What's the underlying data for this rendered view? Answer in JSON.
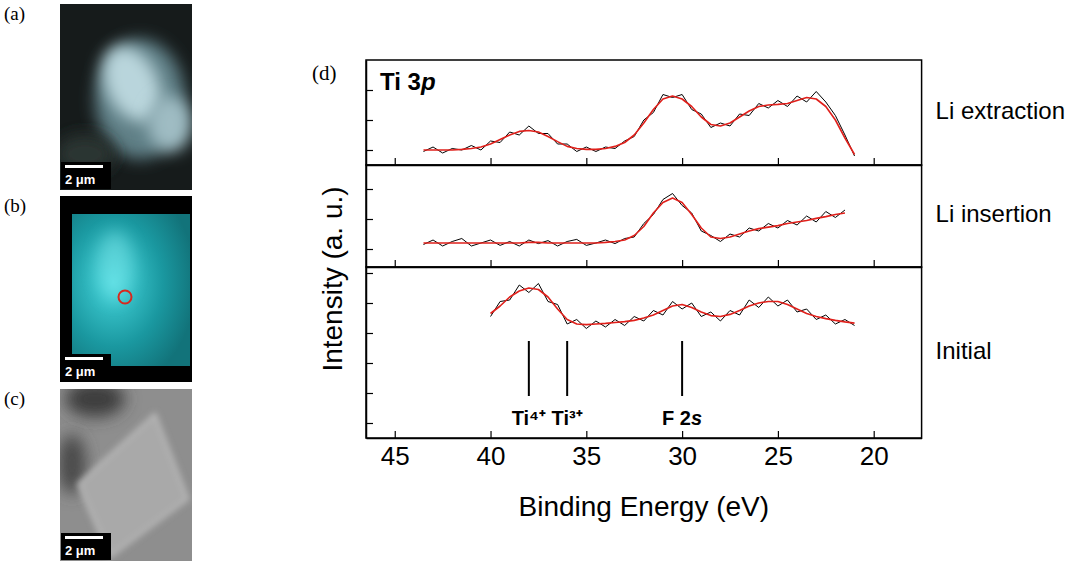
{
  "figure": {
    "panel_letter": "(d)",
    "title": "Ti 3p",
    "y_label": "Intensity (a. u.)",
    "x_label": "Binding Energy (eV)"
  },
  "images": [
    {
      "letter": "(a)",
      "scale_bar": "2 μm"
    },
    {
      "letter": "(b)",
      "scale_bar": "2 μm"
    },
    {
      "letter": "(c)",
      "scale_bar": "2 μm"
    }
  ],
  "chart_data": [
    {
      "type": "line",
      "label": "Li extraction",
      "x": [
        43.5,
        43,
        42.5,
        42,
        41.5,
        41,
        40.5,
        40,
        39.5,
        39,
        38.5,
        38,
        37.5,
        37,
        36.5,
        36,
        35.5,
        35,
        34.5,
        34,
        33.5,
        33,
        32.5,
        32,
        31.5,
        31,
        30.5,
        30,
        29.5,
        29,
        28.5,
        28,
        27.5,
        27,
        26.5,
        26,
        25.5,
        25,
        24.5,
        24,
        23.5,
        23,
        22.5,
        22,
        21.5,
        21
      ],
      "xlim": [
        46.5,
        17.5
      ],
      "xticks": [
        45,
        40,
        35,
        30,
        25,
        20
      ],
      "ylim": [
        0,
        3.5
      ],
      "yticks": [
        0.5,
        1.5,
        2.5
      ],
      "tick_labels": false,
      "series": [
        {
          "color": "#000000",
          "values": [
            0.45,
            0.6,
            0.4,
            0.55,
            0.5,
            0.65,
            0.5,
            0.8,
            0.75,
            1.1,
            1.0,
            1.3,
            1.05,
            1.05,
            0.7,
            0.7,
            0.45,
            0.6,
            0.45,
            0.6,
            0.55,
            0.8,
            0.95,
            1.5,
            1.75,
            2.35,
            2.25,
            2.35,
            1.85,
            1.7,
            1.25,
            1.4,
            1.3,
            1.7,
            1.65,
            2.05,
            1.9,
            2.15,
            1.95,
            2.3,
            2.1,
            2.45,
            2.1,
            1.65,
            1.0,
            0.3
          ]
        },
        {
          "color": "#e0201b",
          "values": [
            0.5,
            0.5,
            0.5,
            0.5,
            0.52,
            0.55,
            0.6,
            0.7,
            0.85,
            1.0,
            1.12,
            1.15,
            1.1,
            0.95,
            0.78,
            0.62,
            0.55,
            0.52,
            0.52,
            0.55,
            0.62,
            0.75,
            1.0,
            1.4,
            1.85,
            2.2,
            2.3,
            2.2,
            1.95,
            1.6,
            1.35,
            1.3,
            1.4,
            1.6,
            1.8,
            1.95,
            2.0,
            2.02,
            2.05,
            2.15,
            2.25,
            2.2,
            1.95,
            1.5,
            0.9,
            0.35
          ]
        }
      ]
    },
    {
      "type": "line",
      "label": "Li insertion",
      "x": [
        43.5,
        43,
        42.5,
        42,
        41.5,
        41,
        40.5,
        40,
        39.5,
        39,
        38.5,
        38,
        37.5,
        37,
        36.5,
        36,
        35.5,
        35,
        34.5,
        34,
        33.5,
        33,
        32.5,
        32,
        31.5,
        31,
        30.5,
        30,
        29.5,
        29,
        28.5,
        28,
        27.5,
        27,
        26.5,
        26,
        25.5,
        25,
        24.5,
        24,
        23.5,
        23,
        22.5,
        22,
        21.5
      ],
      "xlim": [
        46.5,
        17.5
      ],
      "xticks": [
        45,
        40,
        35,
        30,
        25,
        20
      ],
      "ylim": [
        0,
        3.4
      ],
      "yticks": [
        0.6,
        1.6,
        2.6
      ],
      "tick_labels": false,
      "series": [
        {
          "color": "#000000",
          "values": [
            0.75,
            0.9,
            0.7,
            0.85,
            0.95,
            0.7,
            0.8,
            0.9,
            0.72,
            0.85,
            0.7,
            0.9,
            0.78,
            0.88,
            0.7,
            0.85,
            0.92,
            0.72,
            0.8,
            0.9,
            0.78,
            0.95,
            1.0,
            1.45,
            1.75,
            2.25,
            2.45,
            2.05,
            1.8,
            1.2,
            1.05,
            0.85,
            1.1,
            1.0,
            1.3,
            1.2,
            1.45,
            1.3,
            1.55,
            1.4,
            1.7,
            1.5,
            1.85,
            1.65,
            1.9
          ]
        },
        {
          "color": "#e0201b",
          "values": [
            0.8,
            0.8,
            0.8,
            0.8,
            0.8,
            0.8,
            0.8,
            0.8,
            0.8,
            0.8,
            0.8,
            0.82,
            0.82,
            0.8,
            0.8,
            0.8,
            0.8,
            0.8,
            0.8,
            0.82,
            0.85,
            0.9,
            1.05,
            1.35,
            1.8,
            2.15,
            2.3,
            2.15,
            1.75,
            1.3,
            1.0,
            0.95,
            1.0,
            1.1,
            1.2,
            1.28,
            1.33,
            1.38,
            1.45,
            1.5,
            1.55,
            1.62,
            1.68,
            1.75,
            1.8
          ]
        }
      ]
    },
    {
      "type": "line",
      "label": "Initial",
      "x": [
        40,
        39.5,
        39,
        38.5,
        38,
        37.5,
        37,
        36.5,
        36,
        35.5,
        35,
        34.5,
        34,
        33.5,
        33,
        32.5,
        32,
        31.5,
        31,
        30.5,
        30,
        29.5,
        29,
        28.5,
        28,
        27.5,
        27,
        26.5,
        26,
        25.5,
        25,
        24.5,
        24,
        23.5,
        23,
        22.5,
        22,
        21.5,
        21
      ],
      "xlim": [
        46.5,
        17.5
      ],
      "xticks": [
        45,
        40,
        35,
        30,
        25,
        20
      ],
      "ylim": [
        0,
        5.7
      ],
      "yticks": [
        0.5,
        1.5,
        2.5,
        3.5,
        4.5,
        5.5
      ],
      "tick_labels": "x",
      "annotations": [
        {
          "x": 38,
          "label": "Ti⁴⁺"
        },
        {
          "x": 36,
          "label": "Ti³⁺"
        },
        {
          "x": 30,
          "label": "F 2s"
        }
      ],
      "series": [
        {
          "color": "#000000",
          "values": [
            4.05,
            4.55,
            4.6,
            5.1,
            4.85,
            5.15,
            4.55,
            4.45,
            3.8,
            3.95,
            3.65,
            3.9,
            3.7,
            3.95,
            3.75,
            4.05,
            3.9,
            4.25,
            4.1,
            4.55,
            4.3,
            4.5,
            4.05,
            4.2,
            3.9,
            4.25,
            4.1,
            4.6,
            4.35,
            4.7,
            4.4,
            4.6,
            4.2,
            4.3,
            3.95,
            4.1,
            3.8,
            3.95,
            3.75
          ]
        },
        {
          "color": "#e0201b",
          "values": [
            4.15,
            4.4,
            4.7,
            4.9,
            5.0,
            4.95,
            4.7,
            4.3,
            3.95,
            3.8,
            3.78,
            3.8,
            3.82,
            3.85,
            3.88,
            3.92,
            4.0,
            4.1,
            4.25,
            4.4,
            4.45,
            4.35,
            4.2,
            4.08,
            4.05,
            4.12,
            4.25,
            4.4,
            4.5,
            4.55,
            4.55,
            4.45,
            4.3,
            4.15,
            4.05,
            3.98,
            3.92,
            3.87,
            3.83
          ]
        }
      ]
    }
  ]
}
